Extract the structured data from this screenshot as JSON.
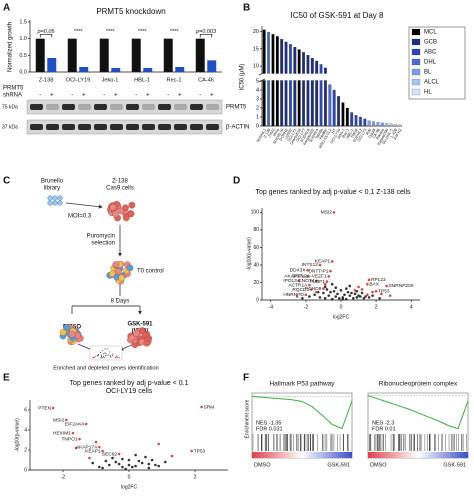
{
  "panel_labels": [
    "A",
    "B",
    "C",
    "D",
    "E",
    "F"
  ],
  "chart_data": [
    {
      "type": "bar",
      "title": "PRMT5 knockdown",
      "ylabel": "Normalized growth",
      "categories": [
        "Z-138",
        "OCI-LY19",
        "Jeko-1",
        "HBL-1",
        "Rec-1",
        "CA-46"
      ],
      "series": [
        {
          "name": "-",
          "color": "#111111",
          "values": [
            1,
            1,
            1,
            1,
            1,
            1
          ]
        },
        {
          "name": "+",
          "color": "#1f4fc4",
          "values": [
            0.42,
            0.15,
            0.12,
            0.12,
            0.15,
            0.35
          ]
        }
      ],
      "ylim": [
        0,
        1.5
      ],
      "yticks": [
        {
          "value": 0,
          "label": "0.0"
        },
        0.5,
        {
          "value": 1,
          "label": "1.0"
        },
        1.5
      ],
      "annotations": [
        "p=0.05",
        "****",
        "****",
        "****",
        "****",
        "p=0.003"
      ],
      "row_label": [
        "PRMT5",
        "shRNA"
      ]
    },
    {
      "type": "bar",
      "title": "IC50 of GSK-591 at Day 8",
      "ylabel": "IC50 (μM)",
      "categories": [
        "NUDHL1",
        "Z-138",
        "JVM2",
        "Mino",
        "SUDHL10",
        "DOHH2",
        "U2932",
        "OCI-LY1",
        "Granta519",
        "OCI-LY7",
        "SUDHL6",
        "Karpas422",
        "SUDHL4",
        "Toledo",
        "Pfeiffer",
        "WSU-DLCL2",
        "HT",
        "OCI-LY19",
        "Jeko-1",
        "Rec-1",
        "HBL-1",
        "TMD8",
        "SUDHL2",
        "OCI-LY3",
        "Raji",
        "Daudi",
        "CA-46",
        "Ramos",
        "Karpas299",
        "SU-DHL-1",
        "L-428",
        "KM-H2"
      ],
      "values": [
        20.5,
        19.8,
        19.2,
        18.6,
        17.8,
        17,
        16.3,
        15.5,
        14.8,
        14,
        13.2,
        12.3,
        11.5,
        10.5,
        9.5,
        4.6,
        4,
        3.3,
        2.6,
        2,
        1.5,
        1.2,
        1,
        0.8,
        0.6,
        0.5,
        0.4,
        0.35,
        0.3,
        0.25,
        0.2,
        0.15
      ],
      "colors": [
        "#000000",
        "#4b6bd6",
        "#000000",
        "#000000",
        "#1c2f80",
        "#1c2f80",
        "#2e47b8",
        "#1c2f80",
        "#000000",
        "#1c2f80",
        "#1c2f80",
        "#1c2f80",
        "#1c2f80",
        "#2e47b8",
        "#1c2f80",
        "#4b6bd6",
        "#2e47b8",
        "#1c2f80",
        "#000000",
        "#000000",
        "#2e47b8",
        "#2e47b8",
        "#2e47b8",
        "#2e47b8",
        "#7e9be8",
        "#7e9be8",
        "#7e9be8",
        "#7e9be8",
        "#aec2f2",
        "#aec2f2",
        "#d6e0fa",
        "#d6e0fa"
      ],
      "ylim": [
        0,
        21
      ],
      "yticks": [
        0,
        1,
        2,
        3,
        4,
        5,
        10,
        15,
        20
      ],
      "axis_break": [
        5,
        8
      ],
      "legend": [
        {
          "name": "MCL",
          "color": "#000000"
        },
        {
          "name": "GCB",
          "color": "#1c2f80"
        },
        {
          "name": "ABC",
          "color": "#2e47b8"
        },
        {
          "name": "DHL",
          "color": "#4b6bd6"
        },
        {
          "name": "BL",
          "color": "#7e9be8"
        },
        {
          "name": "ALCL",
          "color": "#aec2f2"
        },
        {
          "name": "HL",
          "color": "#d6e0fa"
        }
      ]
    },
    {
      "type": "scatter",
      "title": "Top genes ranked by adj p-value < 0.1 Z-138 cells",
      "xlabel": "log2FC",
      "ylabel": "-log10(p-value)",
      "xlim": [
        -4.5,
        4.5
      ],
      "xticks": [
        -4,
        -2,
        0,
        2,
        4
      ],
      "ylim": [
        0,
        105
      ],
      "yticks": [
        0,
        20,
        40,
        60,
        80,
        100
      ],
      "series": [
        {
          "color": "#111111",
          "x": [
            -1.2,
            -0.9,
            -0.7,
            -0.5,
            -0.3,
            -0.1,
            0.1,
            0.3,
            0.5,
            0.7,
            0.9,
            1.1,
            1.3,
            -1.5,
            -1,
            -0.6,
            -0.2,
            0.2,
            0.6,
            1,
            1.4,
            -0.8,
            -0.4,
            0,
            0.4,
            0.8,
            1.6,
            1.8,
            -1.8,
            -2.2,
            2.2,
            -0.3,
            0.3,
            0.9,
            -0.9,
            1.2,
            -1.3,
            0.5,
            -0.5,
            0.1
          ],
          "y": [
            3,
            2,
            5,
            1,
            4,
            2,
            3,
            1,
            5,
            2,
            3,
            4,
            2,
            6,
            8,
            9,
            7,
            6,
            8,
            5,
            4,
            12,
            10,
            11,
            9,
            7,
            3,
            5,
            4,
            2,
            2,
            14,
            13,
            10,
            15,
            8,
            9,
            16,
            18,
            1
          ]
        },
        {
          "color": "#d62728",
          "x": [
            1.2,
            1.8,
            2.3,
            1,
            1.5,
            -1.4,
            -2.5,
            2.8,
            0.8,
            -0.9
          ],
          "y": [
            12,
            9,
            7,
            15,
            6,
            9,
            4,
            5,
            11,
            18
          ]
        },
        {
          "color": "#d62728",
          "x": [
            -0.4,
            -0.5,
            -1.2,
            -1.9,
            -0.6,
            -1.9,
            -0.7,
            -2.4,
            -1.4,
            -0.8,
            -1.8,
            -1.7,
            -1,
            -2,
            1.6,
            1.5,
            2.6,
            2
          ],
          "y": [
            100,
            44,
            40,
            34,
            33,
            27,
            27,
            22,
            22,
            21,
            17,
            12,
            13,
            6,
            23,
            18,
            16,
            10
          ],
          "labels": [
            "MSI2",
            "KEAP1",
            "INTS12",
            "DDX3X",
            "DNTTIP1",
            "AKAP17A",
            "SPPL2A-VEZF1",
            "IPO13",
            "CNOT4",
            "FUBP1",
            "ACTR1A",
            "RQCD1",
            "PCHD9",
            "HNRNPD",
            "RPL22",
            "BAX",
            "SNRNP200",
            "TP53"
          ]
        }
      ]
    },
    {
      "type": "scatter",
      "title": [
        "Top genes ranked by adj p-value < 0.1",
        "OCI-LY19 cells"
      ],
      "xlabel": "log2FC",
      "ylabel": "-log10(p-value)",
      "xlim": [
        -3,
        3
      ],
      "xticks": [
        -2,
        0,
        2
      ],
      "ylim": [
        0,
        7
      ],
      "yticks": [
        0,
        2,
        4,
        6
      ],
      "series": [
        {
          "color": "#111111",
          "x": [
            -0.8,
            -0.6,
            -0.4,
            -0.2,
            0,
            0.2,
            0.4,
            0.6,
            0.8,
            -0.5,
            -0.1,
            0.3,
            0.7,
            -0.3,
            0.1,
            0.5,
            -0.7,
            0.9,
            -0.9,
            0.2,
            -0.2,
            0.6,
            0,
            1.1,
            -1.1
          ],
          "y": [
            0.2,
            0.5,
            0.8,
            0.3,
            1,
            0.4,
            0.7,
            0.2,
            0.5,
            1.2,
            0.1,
            0.9,
            1,
            0.6,
            0.3,
            1.3,
            0.9,
            0.4,
            0.3,
            1.5,
            1.1,
            0.6,
            0.5,
            0.8,
            0.7
          ]
        },
        {
          "color": "#d62728",
          "x": [
            -1.2,
            -1,
            1.3,
            -1.6,
            0.9
          ],
          "y": [
            1.2,
            2.8,
            1.4,
            2.2,
            2.6
          ]
        },
        {
          "color": "#d62728",
          "x": [
            -2.3,
            2.2,
            -1.9,
            -1.3,
            -1.7,
            -1.5,
            -0.9,
            -0.8,
            -0.3,
            1.9
          ],
          "y": [
            6.2,
            6.3,
            5,
            4.6,
            3.7,
            3.1,
            2.3,
            1.9,
            1.6,
            1.9
          ],
          "labels": [
            "PTEN",
            "SRM",
            "MSI2",
            "EIF2AK4",
            "HEXIM1",
            "TNPO1",
            "AKAP17A",
            "KEAP1",
            "SEC62",
            "TP53"
          ]
        }
      ]
    },
    {
      "type": "line",
      "title": "Hallmark P53 pathway",
      "ylabel": "Enrichment score",
      "annotations": [
        "NES -1.35",
        "FDR 0.031"
      ],
      "x": [
        0,
        0.1,
        0.2,
        0.3,
        0.4,
        0.5,
        0.6,
        0.7,
        0.8,
        0.9,
        1
      ],
      "values": [
        0,
        -0.01,
        -0.02,
        -0.03,
        -0.04,
        -0.06,
        -0.12,
        -0.22,
        -0.33,
        -0.38,
        -0.05
      ],
      "xlim": [
        0,
        1
      ],
      "ylim": [
        -0.42,
        0.04
      ],
      "color": "#3cb043",
      "xlabels": [
        "DMSO",
        "GSK-591"
      ]
    },
    {
      "type": "line",
      "title": "Ribonucleoprotein complex",
      "annotations": [
        "NES -2.3",
        "FDR 0.01"
      ],
      "x": [
        0,
        0.1,
        0.2,
        0.3,
        0.4,
        0.5,
        0.6,
        0.7,
        0.8,
        0.9,
        1
      ],
      "values": [
        0,
        -0.05,
        -0.1,
        -0.15,
        -0.2,
        -0.26,
        -0.32,
        -0.38,
        -0.45,
        -0.5,
        -0.08
      ],
      "xlim": [
        0,
        1
      ],
      "ylim": [
        -0.55,
        0.04
      ],
      "color": "#3cb043",
      "xlabels": [
        "DMSO",
        "GSK-591"
      ]
    }
  ],
  "blot": {
    "markers": [
      "75 kDa",
      "37 kDa"
    ],
    "proteins": [
      "PRMT5",
      "β-ACTIN"
    ]
  },
  "diagram": {
    "library": [
      "Brunello",
      "library"
    ],
    "cells": [
      "Z-138",
      "Cas9 cells"
    ],
    "moi": "MOI=0.3",
    "selection": [
      "Puromycin",
      "selection"
    ],
    "t0": "T0 control",
    "days": "8 Days",
    "dmso": "DMSO",
    "gsk": [
      "GSK-591",
      "(IC80)"
    ],
    "result": "Enriched and depleted genes identification"
  }
}
